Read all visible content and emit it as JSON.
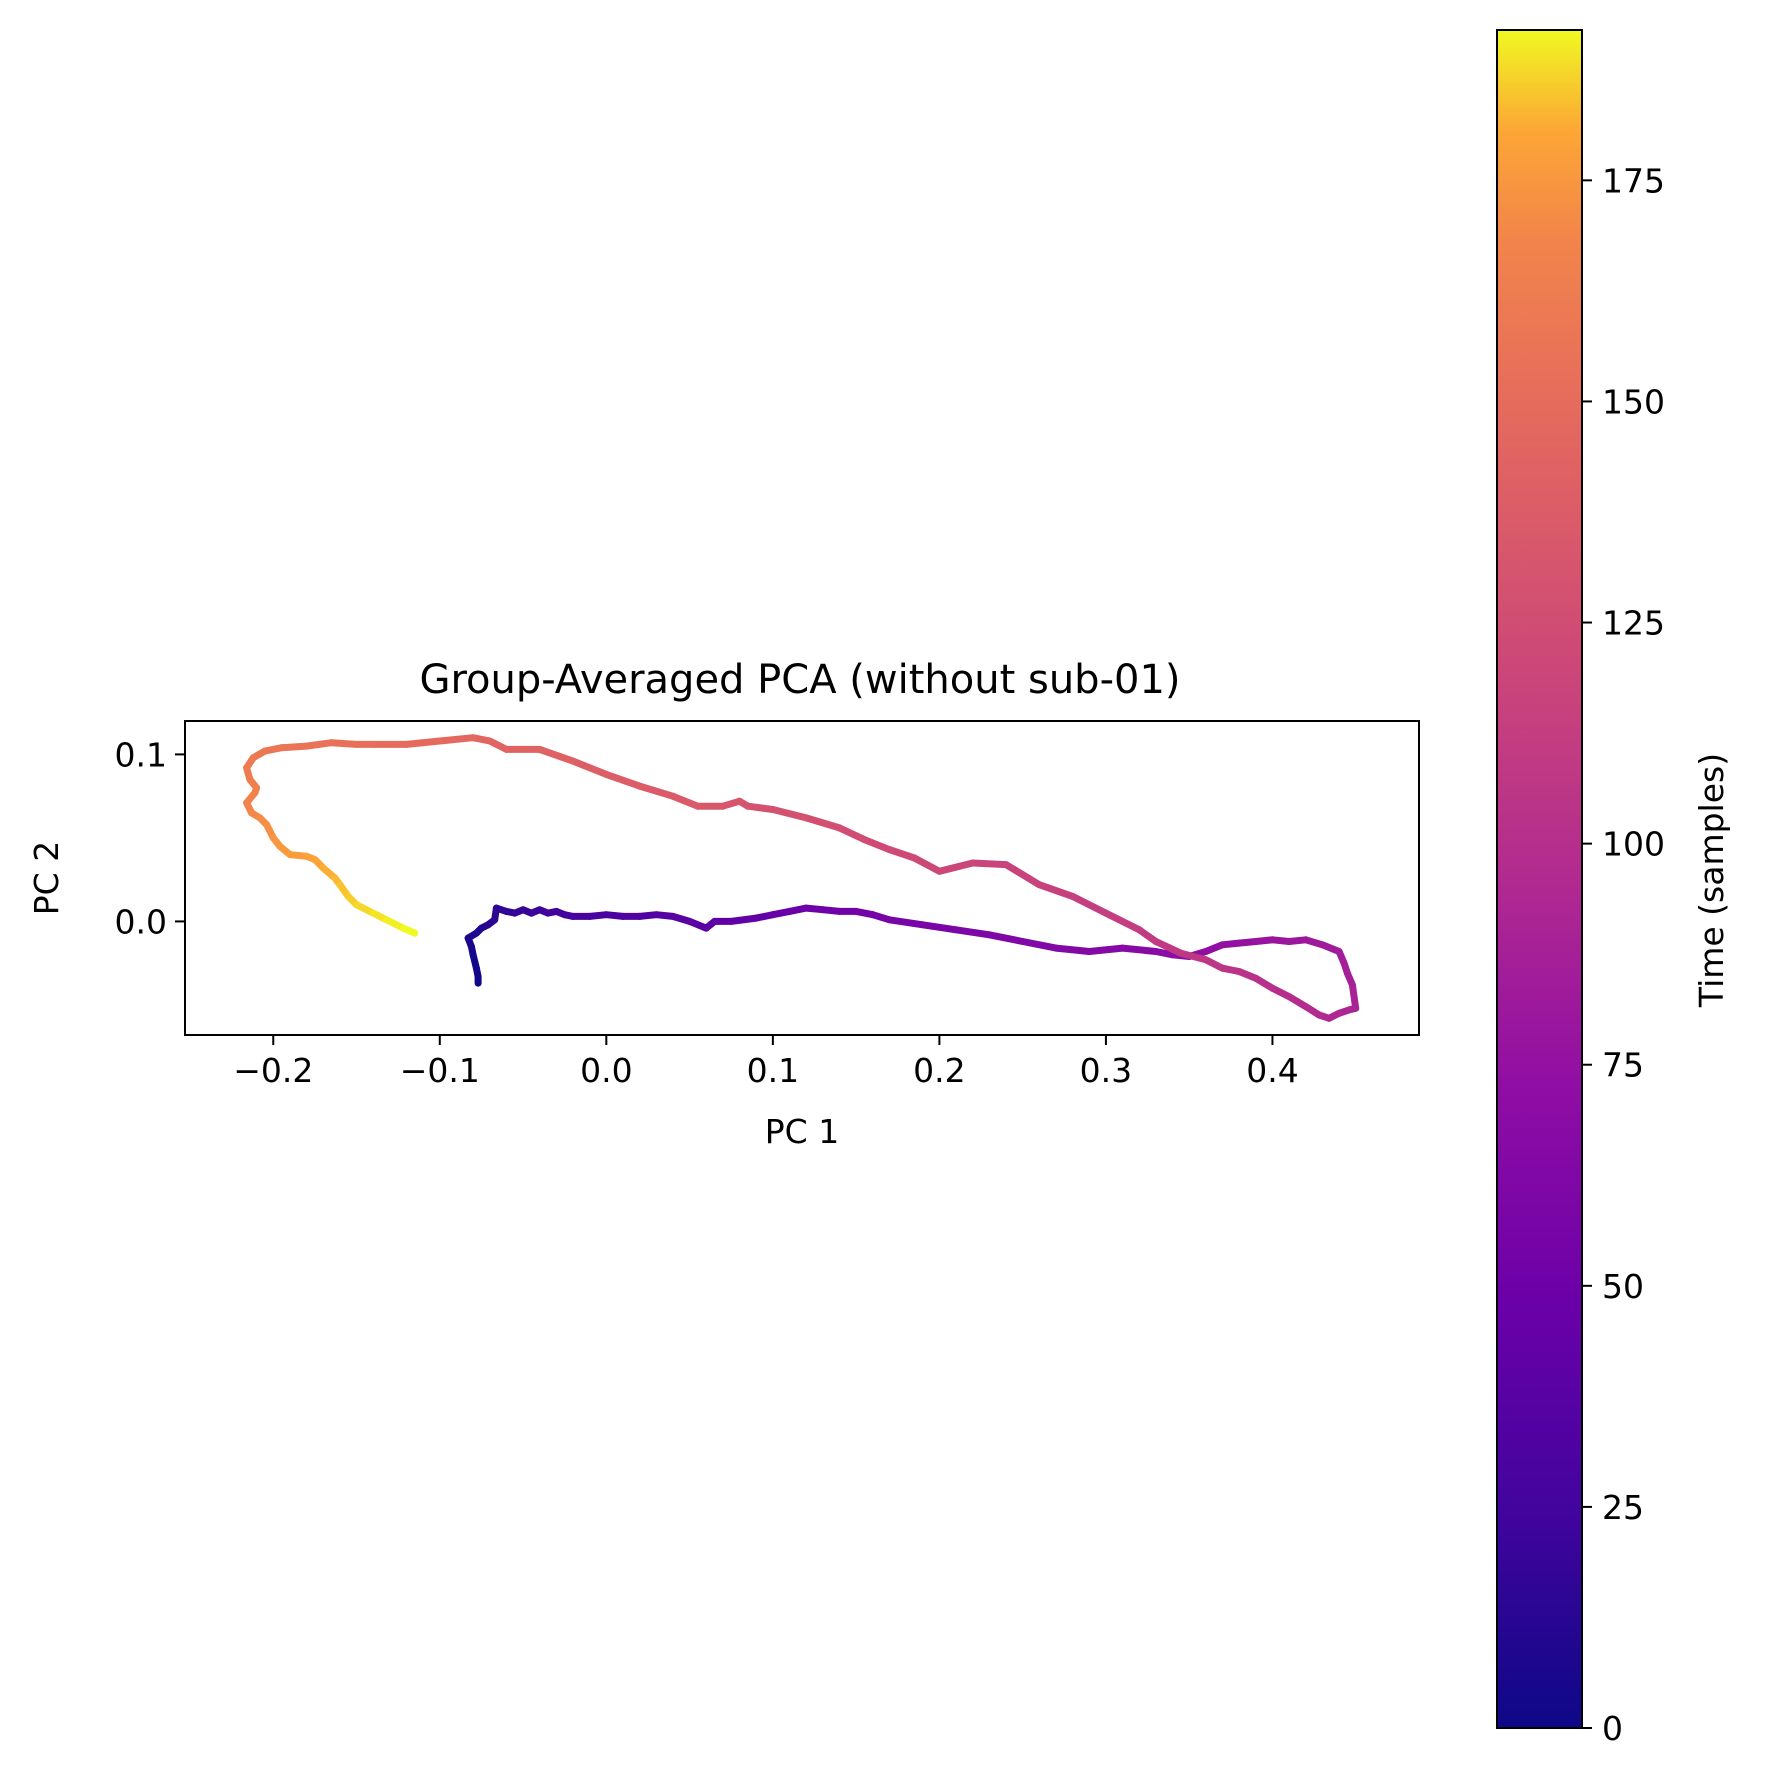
{
  "chart_data": {
    "type": "line",
    "title": "Group-Averaged PCA (without sub-01)",
    "xlabel": "PC 1",
    "ylabel": "PC 2",
    "xlim": [
      -0.253,
      0.488
    ],
    "ylim": [
      -0.068,
      0.12
    ],
    "xticks": [
      -0.2,
      -0.1,
      0.0,
      0.1,
      0.2,
      0.3,
      0.4
    ],
    "xtick_labels": [
      "−0.2",
      "−0.1",
      "0.0",
      "0.1",
      "0.2",
      "0.3",
      "0.4"
    ],
    "yticks": [
      0.0,
      0.1
    ],
    "ytick_labels": [
      "0.0",
      "0.1"
    ],
    "grid": false,
    "colormap": "plasma",
    "colorbar": {
      "label": "Time (samples)",
      "range": [
        0,
        192
      ],
      "ticks": [
        0,
        25,
        50,
        75,
        100,
        125,
        150,
        175
      ],
      "tick_labels": [
        "0",
        "25",
        "50",
        "75",
        "100",
        "125",
        "150",
        "175"
      ]
    },
    "series": [
      {
        "x": [
          -0.077,
          -0.077,
          -0.078,
          -0.08,
          -0.081,
          -0.083,
          -0.078,
          -0.075,
          -0.071,
          -0.067,
          -0.066,
          -0.06,
          -0.055,
          -0.05,
          -0.045,
          -0.04,
          -0.035,
          -0.03,
          -0.025,
          -0.02,
          -0.01,
          0.0,
          0.01,
          0.02,
          0.03,
          0.04,
          0.05,
          0.06,
          0.065,
          0.075,
          0.09,
          0.1,
          0.11,
          0.12,
          0.13,
          0.14,
          0.15,
          0.16,
          0.17,
          0.19,
          0.21,
          0.23,
          0.25,
          0.27,
          0.29,
          0.31,
          0.33,
          0.34,
          0.35,
          0.36,
          0.37,
          0.38,
          0.39,
          0.4,
          0.41,
          0.42,
          0.43,
          0.44,
          0.443,
          0.445,
          0.448,
          0.45,
          0.446,
          0.44,
          0.434,
          0.428,
          0.42,
          0.41,
          0.4,
          0.39,
          0.38,
          0.37,
          0.36,
          0.345,
          0.33,
          0.32,
          0.3,
          0.28,
          0.26,
          0.24,
          0.22,
          0.2,
          0.185,
          0.17,
          0.155,
          0.14,
          0.12,
          0.1,
          0.085,
          0.08,
          0.07,
          0.055,
          0.04,
          0.02,
          0.0,
          -0.02,
          -0.04,
          -0.06,
          -0.07,
          -0.08,
          -0.1,
          -0.12,
          -0.14,
          -0.15,
          -0.165,
          -0.18,
          -0.195,
          -0.205,
          -0.212,
          -0.216,
          -0.214,
          -0.21,
          -0.211,
          -0.216,
          -0.213,
          -0.208,
          -0.204,
          -0.2,
          -0.196,
          -0.19,
          -0.18,
          -0.175,
          -0.17,
          -0.163,
          -0.16,
          -0.155,
          -0.15,
          -0.14,
          -0.132,
          -0.122,
          -0.115
        ],
        "y": [
          -0.037,
          -0.033,
          -0.028,
          -0.02,
          -0.015,
          -0.01,
          -0.007,
          -0.004,
          -0.002,
          0.001,
          0.008,
          0.006,
          0.005,
          0.007,
          0.005,
          0.007,
          0.005,
          0.006,
          0.004,
          0.003,
          0.003,
          0.004,
          0.003,
          0.003,
          0.004,
          0.003,
          0.0,
          -0.004,
          0.0,
          0.0,
          0.002,
          0.004,
          0.006,
          0.008,
          0.007,
          0.006,
          0.006,
          0.004,
          0.001,
          -0.002,
          -0.005,
          -0.008,
          -0.012,
          -0.016,
          -0.018,
          -0.016,
          -0.018,
          -0.02,
          -0.021,
          -0.018,
          -0.014,
          -0.013,
          -0.012,
          -0.011,
          -0.012,
          -0.011,
          -0.014,
          -0.018,
          -0.025,
          -0.031,
          -0.038,
          -0.052,
          -0.053,
          -0.055,
          -0.058,
          -0.056,
          -0.051,
          -0.045,
          -0.04,
          -0.034,
          -0.03,
          -0.028,
          -0.023,
          -0.019,
          -0.012,
          -0.005,
          0.005,
          0.015,
          0.022,
          0.034,
          0.035,
          0.03,
          0.038,
          0.043,
          0.049,
          0.056,
          0.062,
          0.067,
          0.069,
          0.072,
          0.069,
          0.069,
          0.075,
          0.081,
          0.088,
          0.096,
          0.103,
          0.103,
          0.108,
          0.11,
          0.108,
          0.106,
          0.106,
          0.106,
          0.107,
          0.105,
          0.104,
          0.102,
          0.098,
          0.092,
          0.085,
          0.08,
          0.077,
          0.071,
          0.065,
          0.062,
          0.058,
          0.05,
          0.045,
          0.04,
          0.039,
          0.037,
          0.032,
          0.026,
          0.022,
          0.015,
          0.01,
          0.005,
          0.001,
          -0.004,
          -0.007
        ]
      }
    ]
  }
}
